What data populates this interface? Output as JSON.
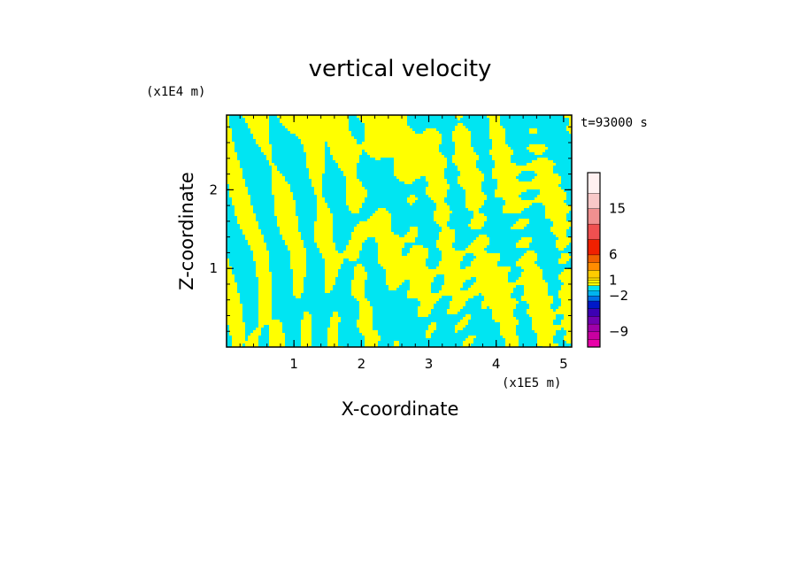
{
  "chart_data": {
    "type": "heatmap",
    "title": "vertical velocity",
    "xlabel": "X-coordinate",
    "ylabel": "Z-coordinate",
    "x_multiplier": "(x1E5 m)",
    "y_multiplier": "(x1E4 m)",
    "time_label": "t=93000 s",
    "xlim": [
      0,
      5.12
    ],
    "ylim": [
      0,
      2.95
    ],
    "x_ticks": [
      1,
      2,
      3,
      4,
      5
    ],
    "x_tick_labels": [
      "1",
      "2",
      "3",
      "4",
      "5"
    ],
    "y_ticks": [
      1,
      2
    ],
    "y_tick_labels": [
      "1",
      "2"
    ],
    "dominant_levels": {
      "positive_color": "#ffff00",
      "negative_color": "#00e5f2",
      "description_values": [
        "1",
        "-2"
      ]
    },
    "colorbar": {
      "boundaries": [
        -12,
        -10.5,
        -9,
        -7.5,
        -6,
        -4.5,
        -3,
        -2,
        -1,
        0,
        0.5,
        1,
        1.5,
        3,
        4.5,
        6,
        9,
        12,
        15,
        18,
        22
      ],
      "colors": [
        "#e800a8",
        "#c800a0",
        "#a000a8",
        "#7000b0",
        "#3c00b4",
        "#0018c8",
        "#0070e8",
        "#00b4f0",
        "#00e5f2",
        "#ffff00",
        "#ffff00",
        "#ffe000",
        "#ffcc00",
        "#ff8c00",
        "#f06000",
        "#f02000",
        "#f05050",
        "#f09090",
        "#f8c8c8",
        "#fff0f0"
      ],
      "tick_values": [
        15,
        6,
        1,
        -2,
        -9
      ],
      "tick_labels": [
        "15",
        "6",
        "1",
        "−2",
        "−9"
      ]
    }
  }
}
